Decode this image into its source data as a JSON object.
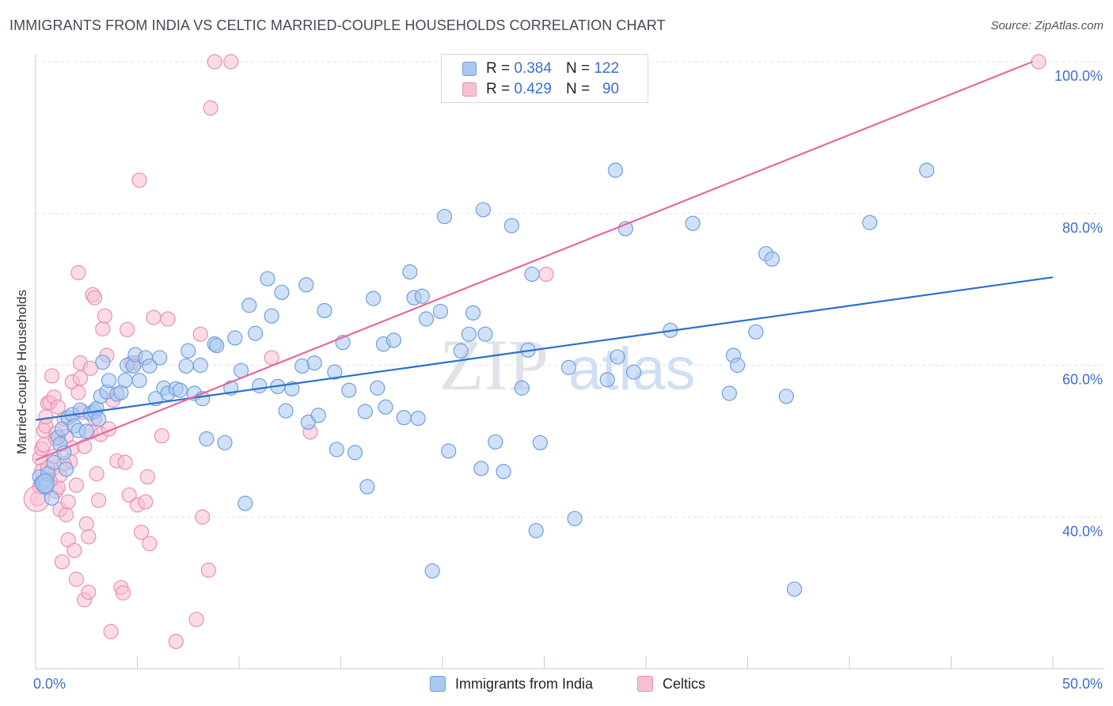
{
  "title": "IMMIGRANTS FROM INDIA VS CELTIC MARRIED-COUPLE HOUSEHOLDS CORRELATION CHART",
  "source": "Source: ZipAtlas.com",
  "watermark": {
    "zip": "ZIP",
    "atlas": "atlas"
  },
  "legend": {
    "rows": [
      {
        "r_label": "R =",
        "r_value": "0.384",
        "n_label": "N =",
        "n_value": "122"
      },
      {
        "r_label": "R =",
        "r_value": "0.429",
        "n_label": "N =",
        "n_value": "90"
      }
    ]
  },
  "colors": {
    "blue_fill": "#aac8f0",
    "blue_stroke": "#6f9ee0",
    "blue_line": "#2b6fd0",
    "pink_fill": "#f7bfd2",
    "pink_stroke": "#eb8fb0",
    "pink_line": "#e8689a",
    "tick_label": "#3a6fd0",
    "grid": "#dde2ea"
  },
  "chart_data": {
    "type": "scatter",
    "xlabel": "",
    "ylabel": "Married-couple Households",
    "xlim": [
      0,
      50
    ],
    "ylim": [
      20,
      100
    ],
    "x_tick_labels": [
      {
        "value": 0,
        "label": "0.0%"
      },
      {
        "value": 50,
        "label": "50.0%"
      }
    ],
    "y_tick_labels": [
      {
        "value": 40,
        "label": "40.0%"
      },
      {
        "value": 60,
        "label": "60.0%"
      },
      {
        "value": 80,
        "label": "80.0%"
      },
      {
        "value": 100,
        "label": "100.0%"
      }
    ],
    "grid": true,
    "series": [
      {
        "name": "Immigrants from India",
        "color": "#aac8f0",
        "trend": {
          "x": [
            0,
            50
          ],
          "y": [
            52.8,
            71.6
          ]
        },
        "points": [
          [
            0.2,
            45.3
          ],
          [
            0.3,
            44.5
          ],
          [
            0.4,
            44.6
          ],
          [
            0.5,
            43.9
          ],
          [
            0.5,
            44.9
          ],
          [
            0.6,
            45.7
          ],
          [
            0.8,
            42.5
          ],
          [
            0.9,
            47.2
          ],
          [
            1.1,
            50.5
          ],
          [
            1.2,
            49.6
          ],
          [
            1.3,
            51.6
          ],
          [
            1.5,
            46.3
          ],
          [
            1.6,
            53.1
          ],
          [
            1.8,
            53.5
          ],
          [
            1.9,
            52.0
          ],
          [
            2.1,
            51.4
          ],
          [
            2.2,
            54.1
          ],
          [
            2.5,
            51.3
          ],
          [
            2.7,
            53.7
          ],
          [
            2.9,
            53.9
          ],
          [
            3.0,
            54.3
          ],
          [
            3.1,
            52.9
          ],
          [
            3.2,
            55.9
          ],
          [
            3.3,
            60.4
          ],
          [
            3.5,
            56.5
          ],
          [
            3.6,
            58.0
          ],
          [
            4.0,
            56.2
          ],
          [
            4.2,
            56.4
          ],
          [
            4.4,
            58.0
          ],
          [
            4.5,
            60.0
          ],
          [
            4.8,
            59.9
          ],
          [
            4.9,
            61.4
          ],
          [
            5.1,
            58.0
          ],
          [
            5.4,
            61.0
          ],
          [
            5.6,
            59.9
          ],
          [
            5.9,
            55.6
          ],
          [
            6.1,
            61.0
          ],
          [
            6.3,
            57.0
          ],
          [
            6.5,
            56.3
          ],
          [
            6.9,
            56.9
          ],
          [
            7.1,
            56.7
          ],
          [
            7.4,
            59.9
          ],
          [
            7.5,
            61.9
          ],
          [
            7.8,
            56.3
          ],
          [
            8.1,
            60.0
          ],
          [
            8.2,
            55.6
          ],
          [
            8.4,
            50.3
          ],
          [
            8.8,
            62.8
          ],
          [
            8.9,
            62.6
          ],
          [
            9.3,
            49.8
          ],
          [
            9.6,
            57.0
          ],
          [
            9.8,
            63.6
          ],
          [
            10.1,
            59.3
          ],
          [
            10.3,
            41.8
          ],
          [
            10.5,
            67.9
          ],
          [
            10.8,
            64.2
          ],
          [
            11.0,
            57.3
          ],
          [
            11.4,
            71.4
          ],
          [
            11.6,
            66.5
          ],
          [
            11.9,
            57.2
          ],
          [
            12.1,
            69.6
          ],
          [
            12.3,
            54.0
          ],
          [
            12.6,
            56.9
          ],
          [
            13.1,
            59.9
          ],
          [
            13.3,
            70.6
          ],
          [
            13.4,
            52.5
          ],
          [
            13.7,
            60.3
          ],
          [
            13.9,
            53.4
          ],
          [
            14.2,
            67.2
          ],
          [
            14.7,
            59.1
          ],
          [
            14.8,
            48.9
          ],
          [
            15.1,
            63.0
          ],
          [
            15.4,
            56.7
          ],
          [
            15.7,
            48.5
          ],
          [
            16.2,
            53.9
          ],
          [
            16.3,
            44.0
          ],
          [
            16.6,
            68.8
          ],
          [
            16.8,
            57.0
          ],
          [
            17.1,
            62.8
          ],
          [
            17.2,
            54.5
          ],
          [
            17.6,
            63.3
          ],
          [
            18.1,
            53.1
          ],
          [
            18.4,
            72.3
          ],
          [
            18.6,
            68.9
          ],
          [
            18.8,
            53.0
          ],
          [
            19.0,
            69.1
          ],
          [
            19.2,
            66.1
          ],
          [
            19.5,
            32.9
          ],
          [
            19.9,
            67.1
          ],
          [
            20.1,
            79.6
          ],
          [
            20.3,
            48.7
          ],
          [
            20.9,
            61.9
          ],
          [
            21.3,
            64.1
          ],
          [
            21.5,
            66.9
          ],
          [
            21.9,
            46.4
          ],
          [
            22.0,
            80.5
          ],
          [
            22.1,
            64.1
          ],
          [
            22.6,
            49.9
          ],
          [
            23.0,
            46.0
          ],
          [
            23.4,
            78.4
          ],
          [
            23.9,
            57.0
          ],
          [
            24.2,
            62.0
          ],
          [
            24.4,
            72.0
          ],
          [
            24.6,
            38.2
          ],
          [
            24.8,
            49.8
          ],
          [
            26.2,
            59.7
          ],
          [
            26.5,
            39.8
          ],
          [
            28.1,
            58.1
          ],
          [
            28.5,
            85.7
          ],
          [
            28.6,
            61.1
          ],
          [
            29.0,
            78.0
          ],
          [
            29.4,
            59.1
          ],
          [
            31.2,
            64.6
          ],
          [
            32.3,
            78.7
          ],
          [
            34.1,
            56.3
          ],
          [
            34.3,
            61.3
          ],
          [
            34.5,
            60.0
          ],
          [
            35.4,
            64.4
          ],
          [
            35.9,
            74.7
          ],
          [
            36.2,
            74.0
          ],
          [
            36.9,
            55.9
          ],
          [
            37.3,
            30.5
          ],
          [
            41.0,
            78.8
          ],
          [
            43.8,
            85.7
          ],
          [
            0.5,
            44.2
          ],
          [
            1.4,
            48.5
          ]
        ]
      },
      {
        "name": "Celtics",
        "color": "#f7bfd2",
        "trend": {
          "x": [
            0,
            49.0
          ],
          "y": [
            47.5,
            100
          ]
        },
        "points": [
          [
            0.1,
            42.4
          ],
          [
            0.2,
            47.8
          ],
          [
            0.3,
            49.0
          ],
          [
            0.3,
            46.1
          ],
          [
            0.4,
            51.4
          ],
          [
            0.5,
            52.0
          ],
          [
            0.5,
            53.2
          ],
          [
            0.6,
            55.0
          ],
          [
            0.7,
            55.1
          ],
          [
            0.8,
            58.6
          ],
          [
            0.8,
            46.3
          ],
          [
            0.9,
            55.8
          ],
          [
            1.0,
            43.4
          ],
          [
            1.0,
            50.3
          ],
          [
            1.1,
            43.9
          ],
          [
            1.1,
            54.5
          ],
          [
            1.2,
            41.0
          ],
          [
            1.3,
            34.1
          ],
          [
            1.4,
            52.9
          ],
          [
            1.5,
            50.6
          ],
          [
            1.5,
            40.3
          ],
          [
            1.6,
            37.0
          ],
          [
            1.7,
            47.3
          ],
          [
            1.8,
            57.8
          ],
          [
            1.8,
            49.1
          ],
          [
            1.9,
            35.6
          ],
          [
            2.0,
            31.8
          ],
          [
            2.1,
            72.2
          ],
          [
            2.1,
            56.4
          ],
          [
            2.2,
            58.3
          ],
          [
            2.2,
            60.3
          ],
          [
            2.4,
            49.3
          ],
          [
            2.4,
            29.1
          ],
          [
            2.5,
            39.1
          ],
          [
            2.6,
            37.4
          ],
          [
            2.6,
            30.1
          ],
          [
            2.7,
            51.2
          ],
          [
            2.7,
            59.6
          ],
          [
            2.8,
            69.3
          ],
          [
            2.9,
            68.9
          ],
          [
            3.0,
            45.7
          ],
          [
            3.1,
            42.2
          ],
          [
            3.2,
            50.9
          ],
          [
            3.3,
            64.8
          ],
          [
            3.4,
            66.5
          ],
          [
            3.5,
            61.3
          ],
          [
            3.6,
            51.6
          ],
          [
            3.7,
            24.9
          ],
          [
            4.0,
            47.4
          ],
          [
            4.2,
            30.7
          ],
          [
            4.3,
            30.0
          ],
          [
            4.4,
            47.2
          ],
          [
            4.5,
            64.7
          ],
          [
            4.6,
            42.9
          ],
          [
            4.7,
            60.3
          ],
          [
            4.9,
            60.3
          ],
          [
            5.0,
            41.6
          ],
          [
            5.1,
            84.4
          ],
          [
            5.2,
            38.0
          ],
          [
            5.4,
            42.0
          ],
          [
            5.5,
            45.3
          ],
          [
            5.6,
            36.5
          ],
          [
            5.8,
            66.3
          ],
          [
            6.2,
            50.7
          ],
          [
            6.5,
            66.1
          ],
          [
            6.9,
            23.6
          ],
          [
            7.9,
            26.5
          ],
          [
            8.1,
            64.1
          ],
          [
            8.2,
            40.0
          ],
          [
            8.5,
            33.0
          ],
          [
            8.6,
            93.9
          ],
          [
            8.8,
            100.0
          ],
          [
            9.6,
            100.0
          ],
          [
            11.6,
            61.0
          ],
          [
            13.5,
            51.2
          ],
          [
            25.1,
            72.0
          ],
          [
            49.3,
            100.0
          ],
          [
            0.2,
            44.0
          ],
          [
            0.4,
            49.5
          ],
          [
            0.6,
            46.5
          ],
          [
            0.9,
            48.0
          ],
          [
            1.2,
            45.5
          ],
          [
            1.6,
            42.0
          ],
          [
            2.3,
            53.8
          ],
          [
            2.9,
            53.0
          ],
          [
            3.8,
            55.4
          ],
          [
            1.4,
            47.0
          ],
          [
            0.7,
            44.8
          ],
          [
            2.0,
            44.2
          ],
          [
            1.0,
            51.0
          ]
        ]
      }
    ]
  }
}
